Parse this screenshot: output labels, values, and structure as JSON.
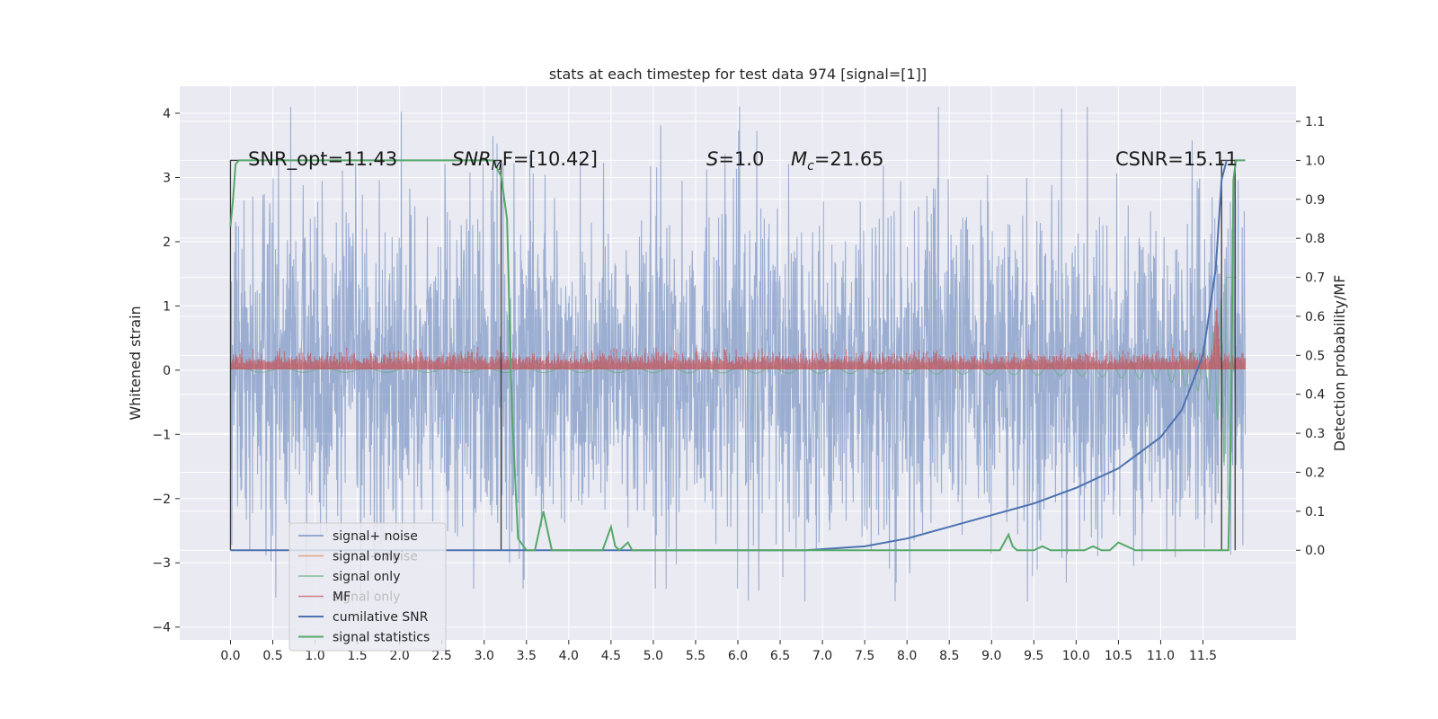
{
  "chart_data": {
    "type": "line",
    "title": "stats at each timestep for test data 974 [signal=[1]]",
    "ylabel_left": "Whitened strain",
    "ylabel_right": "Detection probability/MF",
    "xlim": [
      -0.6,
      12.6
    ],
    "ylim_left": [
      -4.2,
      4.42
    ],
    "ylim_right": [
      -0.23,
      1.19
    ],
    "x_ticks": [
      "0.0",
      "0.5",
      "1.0",
      "1.5",
      "2.0",
      "2.5",
      "3.0",
      "3.5",
      "4.0",
      "4.5",
      "5.0",
      "5.5",
      "6.0",
      "6.5",
      "7.0",
      "7.5",
      "8.0",
      "8.5",
      "9.0",
      "9.5",
      "10.0",
      "10.5",
      "11.0",
      "11.5"
    ],
    "y_ticks_left": [
      "4",
      "3",
      "2",
      "1",
      "0",
      "−1",
      "−2",
      "−3",
      "−4"
    ],
    "y_ticks_right": [
      "1.1",
      "1.0",
      "0.9",
      "0.8",
      "0.7",
      "0.6",
      "0.5",
      "0.4",
      "0.3",
      "0.2",
      "0.1",
      "0.0"
    ],
    "annotations": {
      "snr_opt": "SNR_opt=11.43",
      "snr_mf_sym": "SNR",
      "snr_mf_sub": "M",
      "snr_mf_rest": "F=[10.42]",
      "s_sym": "S",
      "s_rest": "=1.0",
      "mc_sym": "M",
      "mc_sub": "c",
      "mc_rest": "=21.65",
      "csnr": "CSNR=15.11"
    },
    "legend": [
      {
        "name": "signal+ noise",
        "color": "#4c72b0"
      },
      {
        "name": "signal only",
        "color": "#dd8452"
      },
      {
        "name": "signal only",
        "color": "#55a868"
      },
      {
        "name": "MF",
        "color": "#c44e52"
      },
      {
        "name": "cumilative SNR",
        "color": "#4c72b0"
      },
      {
        "name": "signal statistics",
        "color": "#55a868"
      }
    ],
    "legend_ghost": [
      "signal+ noise",
      "signal only",
      "signal statistics"
    ],
    "legend_location": "lower-left",
    "grid": true,
    "series": {
      "noise_amplitude": 2.5,
      "mf_level": 0.15,
      "cumulative_snr": {
        "x": [
          0,
          6.8,
          7.5,
          8,
          8.5,
          9,
          9.5,
          10,
          10.5,
          11,
          11.25,
          11.5,
          11.65,
          11.72,
          11.78
        ],
        "y": [
          0,
          0,
          0.01,
          0.03,
          0.06,
          0.09,
          0.12,
          0.16,
          0.21,
          0.29,
          0.36,
          0.5,
          0.72,
          0.95,
          1.0
        ]
      },
      "signal_statistics": {
        "x": [
          0,
          0.03,
          0.06,
          0.1,
          0.5,
          1.0,
          2.0,
          3.0,
          3.1,
          3.2,
          3.27,
          3.33,
          3.4,
          3.5,
          3.6,
          3.7,
          3.8,
          4.0,
          4.3,
          4.4,
          4.5,
          4.55,
          4.6,
          4.7,
          4.75,
          4.8,
          4.9,
          5.0,
          5.1,
          6.0,
          7.0,
          8.0,
          9.0,
          9.1,
          9.2,
          9.25,
          9.3,
          9.5,
          9.6,
          9.7,
          9.8,
          9.9,
          10.0,
          10.1,
          10.2,
          10.3,
          10.4,
          10.5,
          10.6,
          10.7,
          11.0,
          11.5,
          11.7,
          11.8,
          11.83,
          11.86,
          11.89,
          11.95,
          12.0
        ],
        "y": [
          0.83,
          0.9,
          0.99,
          1.0,
          1.0,
          1.0,
          1.0,
          1.0,
          1.0,
          0.96,
          0.85,
          0.35,
          0.03,
          0.0,
          0.0,
          0.1,
          0.0,
          0.0,
          0.0,
          0.0,
          0.06,
          0.01,
          0.0,
          0.02,
          0.0,
          0.0,
          0.0,
          0.0,
          0.0,
          0.0,
          0.0,
          0.0,
          0.0,
          0.0,
          0.04,
          0.01,
          0.0,
          0.0,
          0.01,
          0.0,
          0.0,
          0.0,
          0.0,
          0.0,
          0.01,
          0.0,
          0.0,
          0.02,
          0.01,
          0.0,
          0.0,
          0.0,
          0.0,
          0.0,
          0.3,
          0.95,
          1.0,
          1.0,
          1.0
        ]
      },
      "boxcar_label_window": [
        0.0,
        3.2
      ],
      "boxcar_label_window_2": [
        11.72,
        11.88
      ]
    }
  }
}
